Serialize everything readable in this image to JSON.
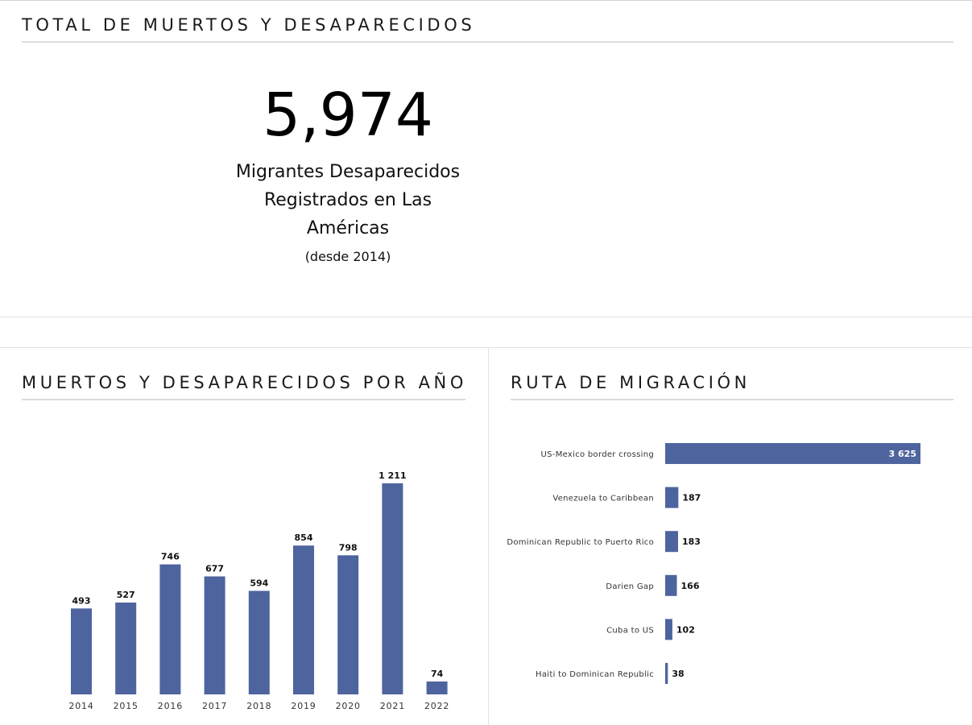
{
  "total": {
    "title": "TOTAL DE MUERTOS Y DESAPARECIDOS",
    "number": "5,974",
    "label": "Migrantes Desaparecidos Registrados en Las Américas",
    "sub": "(desde 2014)"
  },
  "year_section": {
    "title": "MUERTOS Y DESAPARECIDOS POR AÑO"
  },
  "route_section": {
    "title": "RUTA DE MIGRACIÓN"
  },
  "colors": {
    "bar": "#4e649e"
  },
  "chart_data": [
    {
      "type": "bar",
      "orientation": "vertical",
      "title": "MUERTOS Y DESAPARECIDOS POR AÑO",
      "categories": [
        "2014",
        "2015",
        "2016",
        "2017",
        "2018",
        "2019",
        "2020",
        "2021",
        "2022"
      ],
      "values": [
        493,
        527,
        746,
        677,
        594,
        854,
        798,
        1211,
        74
      ],
      "value_labels": [
        "493",
        "527",
        "746",
        "677",
        "594",
        "854",
        "798",
        "1 211",
        "74"
      ],
      "xlabel": "",
      "ylabel": "",
      "ylim": [
        0,
        1211
      ],
      "grid": false
    },
    {
      "type": "bar",
      "orientation": "horizontal",
      "title": "RUTA DE MIGRACIÓN",
      "categories": [
        "US-Mexico border crossing",
        "Venezuela to Caribbean",
        "Dominican Republic to Puerto Rico",
        "Darien Gap",
        "Cuba to US",
        "Haiti to Dominican Republic"
      ],
      "values": [
        3625,
        187,
        183,
        166,
        102,
        38
      ],
      "value_labels": [
        "3 625",
        "187",
        "183",
        "166",
        "102",
        "38"
      ],
      "xlabel": "",
      "ylabel": "",
      "xlim": [
        0,
        3625
      ],
      "grid": false
    }
  ]
}
